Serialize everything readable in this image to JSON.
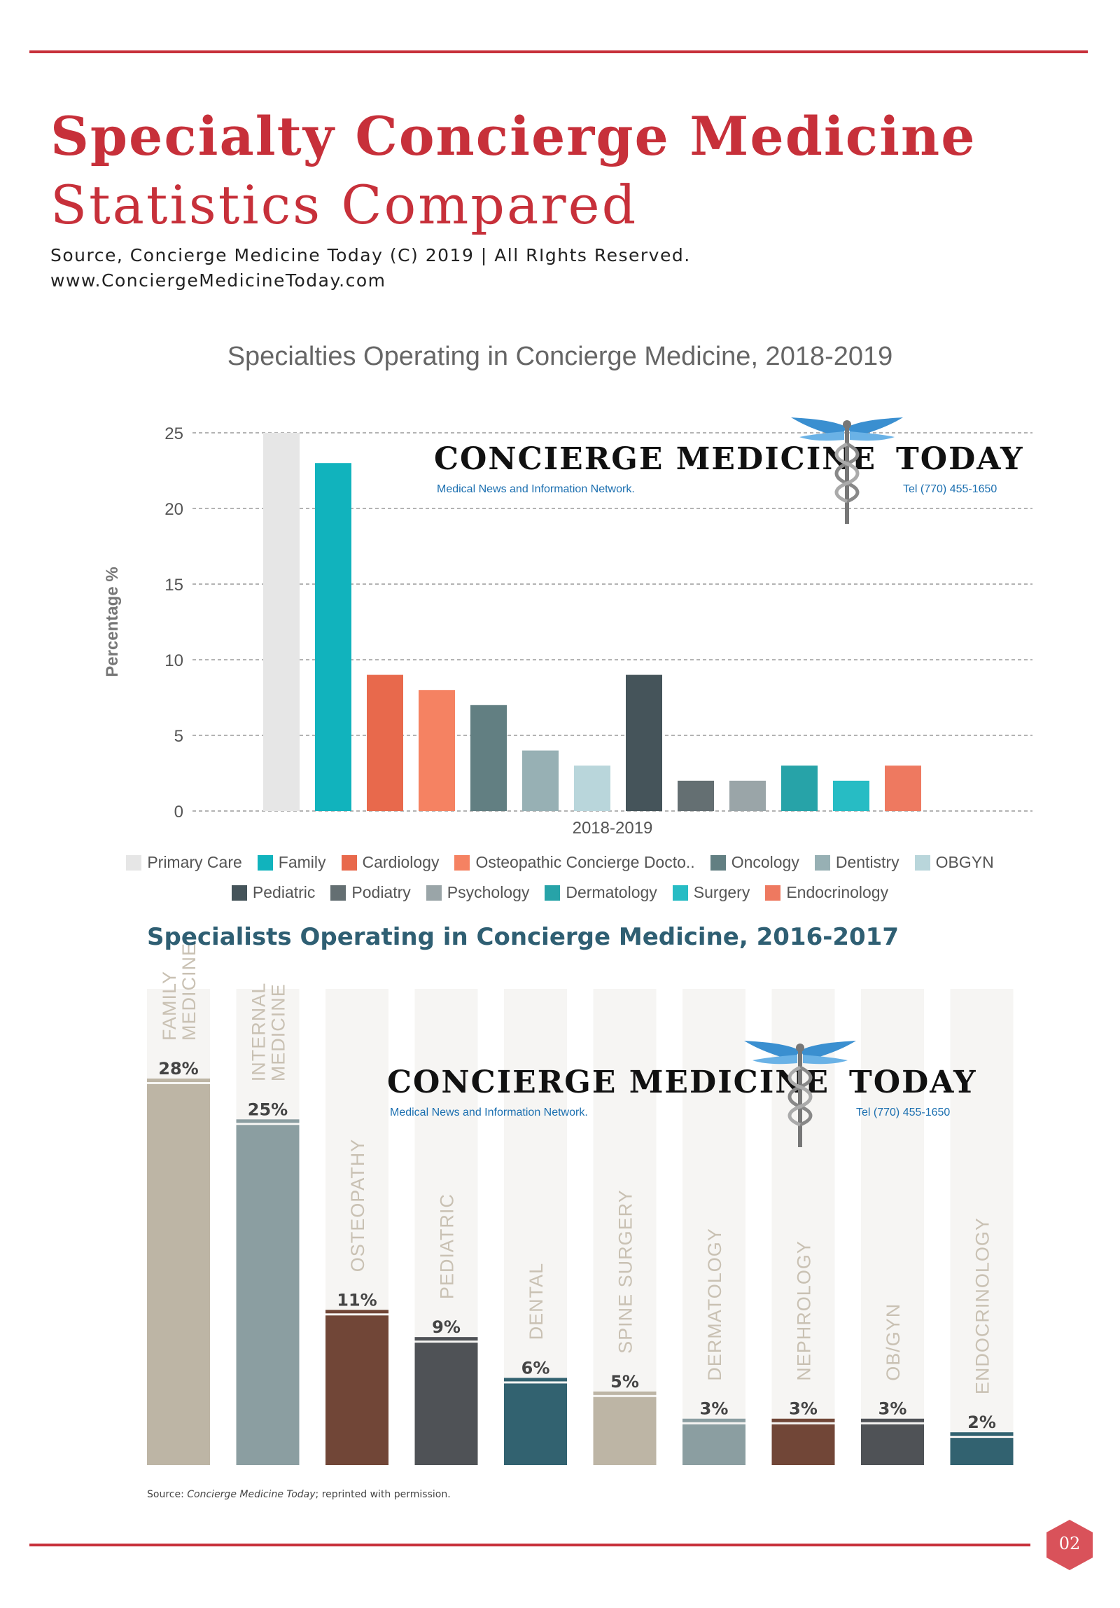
{
  "header": {
    "title_line1": "Specialty Concierge Medicine",
    "title_line2": "Statistics Compared",
    "source_line1": "Source, Concierge Medicine Today (C) 2019 | All RIghts Reserved.",
    "source_line2": "www.ConciergeMedicineToday.com"
  },
  "logo": {
    "name": "CONCIERGE MEDICINE",
    "name_end": "TODAY",
    "tagline": "Medical News and Information Network.",
    "phone": "Tel (770) 455-1650"
  },
  "chart_data": [
    {
      "type": "bar",
      "title": "Specialties Operating in Concierge Medicine, 2018-2019",
      "xlabel": "2018-2019",
      "ylabel": "Percentage %",
      "ylim": [
        0,
        25
      ],
      "yticks": [
        "0",
        "5",
        "10",
        "15",
        "20",
        "25"
      ],
      "grid": true,
      "legend_position": "bottom",
      "series": [
        {
          "name": "Primary Care",
          "value": 25,
          "color": "#e6e6e6"
        },
        {
          "name": "Family",
          "value": 23,
          "color": "#11b3bd"
        },
        {
          "name": "Cardiology",
          "value": 9,
          "color": "#e8694c"
        },
        {
          "name": "Osteopathic Concierge Docto..",
          "value": 8,
          "color": "#f58262"
        },
        {
          "name": "Oncology",
          "value": 7,
          "color": "#627f82"
        },
        {
          "name": "Dentistry",
          "value": 4,
          "color": "#97b0b4"
        },
        {
          "name": "OBGYN",
          "value": 3,
          "color": "#b9d6db"
        },
        {
          "name": "Pediatric",
          "value": 9,
          "color": "#45545a"
        },
        {
          "name": "Podiatry",
          "value": 2,
          "color": "#646f72"
        },
        {
          "name": "Psychology",
          "value": 2,
          "color": "#9aa5a8"
        },
        {
          "name": "Dermatology",
          "value": 3,
          "color": "#27a3a8"
        },
        {
          "name": "Surgery",
          "value": 2,
          "color": "#27bcc4"
        },
        {
          "name": "Endocrinology",
          "value": 3,
          "color": "#ee7960"
        }
      ]
    },
    {
      "type": "bar",
      "title": "Specialists Operating in Concierge Medicine, 2016-2017",
      "ylim": [
        0,
        35
      ],
      "categories": [
        {
          "label": "FAMILY MEDICINE",
          "lines": [
            "FAMILY",
            "MEDICINE"
          ],
          "value": 28,
          "value_label": "28%",
          "color": "#bdb5a5"
        },
        {
          "label": "INTERNAL MEDICINE",
          "lines": [
            "INTERNAL",
            "MEDICINE"
          ],
          "value": 25,
          "value_label": "25%",
          "color": "#8b9ea1"
        },
        {
          "label": "OSTEOPATHY",
          "lines": [
            "OSTEOPATHY"
          ],
          "value": 11,
          "value_label": "11%",
          "color": "#714637"
        },
        {
          "label": "PEDIATRIC",
          "lines": [
            "PEDIATRIC"
          ],
          "value": 9,
          "value_label": "9%",
          "color": "#4f5256"
        },
        {
          "label": "DENTAL",
          "lines": [
            "DENTAL"
          ],
          "value": 6,
          "value_label": "6%",
          "color": "#326270"
        },
        {
          "label": "SPINE SURGERY",
          "lines": [
            "SPINE SURGERY"
          ],
          "value": 5,
          "value_label": "5%",
          "color": "#bdb5a5"
        },
        {
          "label": "DERMATOLOGY",
          "lines": [
            "DERMATOLOGY"
          ],
          "value": 3,
          "value_label": "3%",
          "color": "#8b9ea1"
        },
        {
          "label": "NEPHROLOGY",
          "lines": [
            "NEPHROLOGY"
          ],
          "value": 3,
          "value_label": "3%",
          "color": "#714637"
        },
        {
          "label": "OB/GYN",
          "lines": [
            "OB/GYN"
          ],
          "value": 3,
          "value_label": "3%",
          "color": "#4f5256"
        },
        {
          "label": "ENDOCRINOLOGY",
          "lines": [
            "ENDOCRINOLOGY"
          ],
          "value": 2,
          "value_label": "2%",
          "color": "#326270"
        }
      ],
      "source_prefix": "Source: ",
      "source_italic": "Concierge Medicine Today",
      "source_suffix": "; reprinted with permission."
    }
  ],
  "footer": {
    "page_number": "02"
  },
  "colors": {
    "accent": "#c7303a",
    "chart2_title": "#2f5f73",
    "column_bg": "#f6f5f3"
  }
}
